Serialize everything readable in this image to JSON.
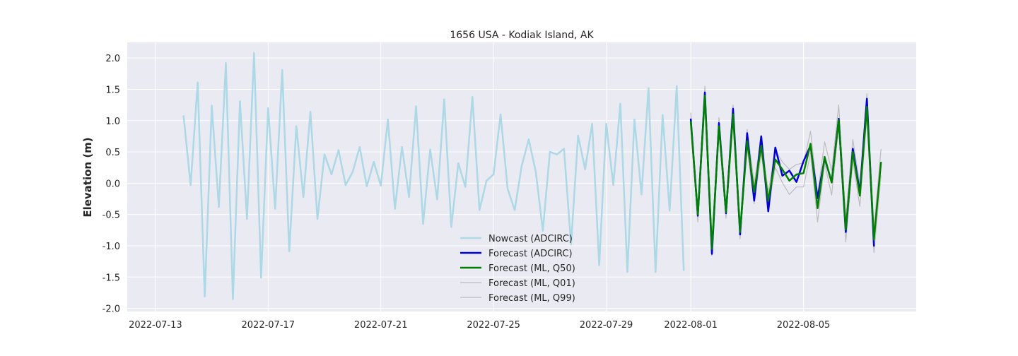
{
  "chart_data": {
    "type": "line",
    "title": "1656 USA - Kodiak Island, AK",
    "xlabel": "",
    "ylabel": "Elevation (m)",
    "xlim": [
      "2022-07-12T00:00",
      "2022-08-09T00:00"
    ],
    "ylim": [
      -2.05,
      2.25
    ],
    "yticks": [
      -2.0,
      -1.5,
      -1.0,
      -0.5,
      0.0,
      0.5,
      1.0,
      1.5,
      2.0
    ],
    "xticks": [
      "2022-07-13",
      "2022-07-17",
      "2022-07-21",
      "2022-07-25",
      "2022-07-29",
      "2022-08-01",
      "2022-08-05"
    ],
    "grid": true,
    "legend_position": "lower-center",
    "colors": {
      "plot_bg": "#eaeaf2",
      "nowcast": "#add8e6",
      "forecast_adcirc": "#0000dd",
      "forecast_q50": "#008000",
      "forecast_band": "#bdbdbd"
    },
    "series": [
      {
        "name": "Nowcast (ADCIRC)",
        "key": "nowcast",
        "width": 2.5,
        "points": [
          [
            "2022-07-14T00:00",
            1.07
          ],
          [
            "2022-07-14T06:00",
            -0.03
          ],
          [
            "2022-07-14T12:00",
            1.61
          ],
          [
            "2022-07-14T18:00",
            -1.81
          ],
          [
            "2022-07-15T00:00",
            1.24
          ],
          [
            "2022-07-15T06:00",
            -0.38
          ],
          [
            "2022-07-15T12:00",
            1.92
          ],
          [
            "2022-07-15T18:00",
            -1.85
          ],
          [
            "2022-07-16T00:00",
            1.31
          ],
          [
            "2022-07-16T06:00",
            -0.57
          ],
          [
            "2022-07-16T12:00",
            2.08
          ],
          [
            "2022-07-16T18:00",
            -1.51
          ],
          [
            "2022-07-17T00:00",
            1.2
          ],
          [
            "2022-07-17T06:00",
            -0.41
          ],
          [
            "2022-07-17T12:00",
            1.81
          ],
          [
            "2022-07-17T18:00",
            -1.09
          ],
          [
            "2022-07-18T00:00",
            0.91
          ],
          [
            "2022-07-18T06:00",
            -0.22
          ],
          [
            "2022-07-18T12:00",
            1.14
          ],
          [
            "2022-07-18T18:00",
            -0.57
          ],
          [
            "2022-07-19T00:00",
            0.46
          ],
          [
            "2022-07-19T06:00",
            0.14
          ],
          [
            "2022-07-19T12:00",
            0.53
          ],
          [
            "2022-07-19T18:00",
            -0.03
          ],
          [
            "2022-07-20T00:00",
            0.18
          ],
          [
            "2022-07-20T06:00",
            0.58
          ],
          [
            "2022-07-20T12:00",
            -0.05
          ],
          [
            "2022-07-20T18:00",
            0.34
          ],
          [
            "2022-07-21T00:00",
            -0.04
          ],
          [
            "2022-07-21T06:00",
            1.02
          ],
          [
            "2022-07-21T12:00",
            -0.41
          ],
          [
            "2022-07-21T18:00",
            0.58
          ],
          [
            "2022-07-22T00:00",
            -0.22
          ],
          [
            "2022-07-22T06:00",
            1.23
          ],
          [
            "2022-07-22T12:00",
            -0.65
          ],
          [
            "2022-07-22T18:00",
            0.54
          ],
          [
            "2022-07-23T00:00",
            -0.26
          ],
          [
            "2022-07-23T06:00",
            1.34
          ],
          [
            "2022-07-23T12:00",
            -0.7
          ],
          [
            "2022-07-23T18:00",
            0.32
          ],
          [
            "2022-07-24T00:00",
            -0.06
          ],
          [
            "2022-07-24T06:00",
            1.38
          ],
          [
            "2022-07-24T12:00",
            -0.43
          ],
          [
            "2022-07-24T18:00",
            0.04
          ],
          [
            "2022-07-25T00:00",
            0.14
          ],
          [
            "2022-07-25T06:00",
            1.1
          ],
          [
            "2022-07-25T12:00",
            -0.09
          ],
          [
            "2022-07-25T18:00",
            -0.43
          ],
          [
            "2022-07-26T00:00",
            0.28
          ],
          [
            "2022-07-26T06:00",
            0.7
          ],
          [
            "2022-07-26T12:00",
            0.18
          ],
          [
            "2022-07-26T18:00",
            -0.76
          ],
          [
            "2022-07-27T00:00",
            0.5
          ],
          [
            "2022-07-27T06:00",
            0.46
          ],
          [
            "2022-07-27T12:00",
            0.55
          ],
          [
            "2022-07-27T18:00",
            -0.98
          ],
          [
            "2022-07-28T00:00",
            0.76
          ],
          [
            "2022-07-28T06:00",
            0.22
          ],
          [
            "2022-07-28T12:00",
            0.95
          ],
          [
            "2022-07-28T18:00",
            -1.31
          ],
          [
            "2022-07-29T00:00",
            0.95
          ],
          [
            "2022-07-29T06:00",
            -0.03
          ],
          [
            "2022-07-29T12:00",
            1.27
          ],
          [
            "2022-07-29T18:00",
            -1.42
          ],
          [
            "2022-07-30T00:00",
            1.02
          ],
          [
            "2022-07-30T06:00",
            -0.18
          ],
          [
            "2022-07-30T12:00",
            1.52
          ],
          [
            "2022-07-30T18:00",
            -1.42
          ],
          [
            "2022-07-31T00:00",
            1.09
          ],
          [
            "2022-07-31T06:00",
            -0.44
          ],
          [
            "2022-07-31T12:00",
            1.55
          ],
          [
            "2022-07-31T18:00",
            -1.39
          ]
        ]
      },
      {
        "name": "Forecast (ADCIRC)",
        "key": "forecast_adcirc",
        "width": 2.5,
        "points": [
          [
            "2022-08-01T00:00",
            1.02
          ],
          [
            "2022-08-01T06:00",
            -0.52
          ],
          [
            "2022-08-01T12:00",
            1.45
          ],
          [
            "2022-08-01T18:00",
            -1.13
          ],
          [
            "2022-08-02T00:00",
            0.96
          ],
          [
            "2022-08-02T06:00",
            -0.48
          ],
          [
            "2022-08-02T12:00",
            1.19
          ],
          [
            "2022-08-02T18:00",
            -0.82
          ],
          [
            "2022-08-03T00:00",
            0.8
          ],
          [
            "2022-08-03T06:00",
            -0.28
          ],
          [
            "2022-08-03T12:00",
            0.75
          ],
          [
            "2022-08-03T18:00",
            -0.45
          ],
          [
            "2022-08-04T00:00",
            0.57
          ],
          [
            "2022-08-04T06:00",
            0.12
          ],
          [
            "2022-08-04T12:00",
            0.2
          ],
          [
            "2022-08-04T18:00",
            0.02
          ],
          [
            "2022-08-05T00:00",
            0.35
          ],
          [
            "2022-08-05T06:00",
            0.6
          ],
          [
            "2022-08-05T12:00",
            -0.24
          ],
          [
            "2022-08-05T18:00",
            0.4
          ],
          [
            "2022-08-06T00:00",
            0.02
          ],
          [
            "2022-08-06T06:00",
            1.03
          ],
          [
            "2022-08-06T12:00",
            -0.78
          ],
          [
            "2022-08-06T18:00",
            0.55
          ],
          [
            "2022-08-07T00:00",
            -0.15
          ],
          [
            "2022-08-07T06:00",
            1.35
          ],
          [
            "2022-08-07T12:00",
            -1.0
          ]
        ]
      },
      {
        "name": "Forecast (ML, Q50)",
        "key": "forecast_q50",
        "width": 2.5,
        "points": [
          [
            "2022-08-01T00:00",
            0.98
          ],
          [
            "2022-08-01T06:00",
            -0.5
          ],
          [
            "2022-08-01T12:00",
            1.4
          ],
          [
            "2022-08-01T18:00",
            -1.05
          ],
          [
            "2022-08-02T00:00",
            0.91
          ],
          [
            "2022-08-02T06:00",
            -0.46
          ],
          [
            "2022-08-02T12:00",
            1.1
          ],
          [
            "2022-08-02T18:00",
            -0.78
          ],
          [
            "2022-08-03T00:00",
            0.67
          ],
          [
            "2022-08-03T06:00",
            -0.14
          ],
          [
            "2022-08-03T12:00",
            0.6
          ],
          [
            "2022-08-03T18:00",
            -0.28
          ],
          [
            "2022-08-04T00:00",
            0.38
          ],
          [
            "2022-08-04T06:00",
            0.22
          ],
          [
            "2022-08-04T12:00",
            0.04
          ],
          [
            "2022-08-04T18:00",
            0.14
          ],
          [
            "2022-08-05T00:00",
            0.16
          ],
          [
            "2022-08-05T06:00",
            0.63
          ],
          [
            "2022-08-05T12:00",
            -0.4
          ],
          [
            "2022-08-05T18:00",
            0.42
          ],
          [
            "2022-08-06T00:00",
            0.01
          ],
          [
            "2022-08-06T06:00",
            1.01
          ],
          [
            "2022-08-06T12:00",
            -0.74
          ],
          [
            "2022-08-06T18:00",
            0.5
          ],
          [
            "2022-08-07T00:00",
            -0.2
          ],
          [
            "2022-08-07T06:00",
            1.22
          ],
          [
            "2022-08-07T12:00",
            -0.9
          ],
          [
            "2022-08-07T18:00",
            0.33
          ]
        ]
      },
      {
        "name": "Forecast (ML, Q01)",
        "key": "forecast_band",
        "width": 1.2,
        "points": [
          [
            "2022-08-01T00:00",
            0.96
          ],
          [
            "2022-08-01T06:00",
            -0.62
          ],
          [
            "2022-08-01T12:00",
            1.36
          ],
          [
            "2022-08-01T18:00",
            -1.16
          ],
          [
            "2022-08-02T00:00",
            0.86
          ],
          [
            "2022-08-02T06:00",
            -0.56
          ],
          [
            "2022-08-02T12:00",
            1.02
          ],
          [
            "2022-08-02T18:00",
            -0.89
          ],
          [
            "2022-08-03T00:00",
            0.56
          ],
          [
            "2022-08-03T06:00",
            -0.33
          ],
          [
            "2022-08-03T12:00",
            0.48
          ],
          [
            "2022-08-03T18:00",
            -0.4
          ],
          [
            "2022-08-04T00:00",
            0.25
          ],
          [
            "2022-08-04T06:00",
            0.01
          ],
          [
            "2022-08-04T12:00",
            -0.18
          ],
          [
            "2022-08-04T18:00",
            -0.06
          ],
          [
            "2022-08-05T00:00",
            -0.06
          ],
          [
            "2022-08-05T06:00",
            0.48
          ],
          [
            "2022-08-05T12:00",
            -0.62
          ],
          [
            "2022-08-05T18:00",
            0.32
          ],
          [
            "2022-08-06T00:00",
            -0.19
          ],
          [
            "2022-08-06T06:00",
            0.92
          ],
          [
            "2022-08-06T12:00",
            -0.94
          ],
          [
            "2022-08-06T18:00",
            0.36
          ],
          [
            "2022-08-07T00:00",
            -0.37
          ],
          [
            "2022-08-07T06:00",
            1.08
          ],
          [
            "2022-08-07T12:00",
            -1.11
          ],
          [
            "2022-08-07T18:00",
            0.12
          ]
        ]
      },
      {
        "name": "Forecast (ML, Q99)",
        "key": "forecast_band",
        "width": 1.2,
        "points": [
          [
            "2022-08-01T00:00",
            1.12
          ],
          [
            "2022-08-01T06:00",
            -0.4
          ],
          [
            "2022-08-01T12:00",
            1.55
          ],
          [
            "2022-08-01T18:00",
            -0.96
          ],
          [
            "2022-08-02T00:00",
            1.05
          ],
          [
            "2022-08-02T06:00",
            -0.36
          ],
          [
            "2022-08-02T12:00",
            1.25
          ],
          [
            "2022-08-02T18:00",
            -0.68
          ],
          [
            "2022-08-03T00:00",
            0.86
          ],
          [
            "2022-08-03T06:00",
            0.0
          ],
          [
            "2022-08-03T12:00",
            0.74
          ],
          [
            "2022-08-03T18:00",
            -0.14
          ],
          [
            "2022-08-04T00:00",
            0.52
          ],
          [
            "2022-08-04T06:00",
            0.34
          ],
          [
            "2022-08-04T12:00",
            0.22
          ],
          [
            "2022-08-04T18:00",
            0.3
          ],
          [
            "2022-08-05T00:00",
            0.32
          ],
          [
            "2022-08-05T06:00",
            0.83
          ],
          [
            "2022-08-05T12:00",
            -0.18
          ],
          [
            "2022-08-05T18:00",
            0.66
          ],
          [
            "2022-08-06T00:00",
            0.2
          ],
          [
            "2022-08-06T06:00",
            1.25
          ],
          [
            "2022-08-06T12:00",
            -0.56
          ],
          [
            "2022-08-06T18:00",
            0.7
          ],
          [
            "2022-08-07T00:00",
            -0.02
          ],
          [
            "2022-08-07T06:00",
            1.43
          ],
          [
            "2022-08-07T12:00",
            -0.72
          ],
          [
            "2022-08-07T18:00",
            0.54
          ]
        ]
      }
    ]
  }
}
